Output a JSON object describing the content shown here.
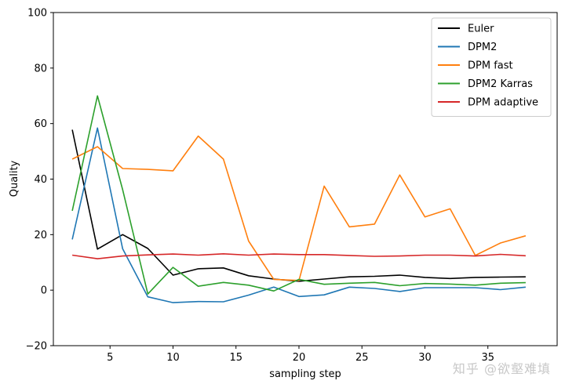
{
  "watermark": "知乎 @欲壑难填",
  "chart_data": {
    "type": "line",
    "title": "",
    "xlabel": "sampling step",
    "ylabel": "Quality",
    "xlim": [
      0.5,
      40.5
    ],
    "ylim": [
      -20,
      100
    ],
    "xticks": [
      5,
      10,
      15,
      20,
      25,
      30,
      35
    ],
    "yticks": [
      -20,
      0,
      20,
      40,
      60,
      80,
      100
    ],
    "grid": false,
    "legend_position": "top-right",
    "x": [
      2,
      4,
      6,
      8,
      10,
      12,
      14,
      16,
      18,
      20,
      22,
      24,
      26,
      28,
      30,
      32,
      34,
      36,
      38
    ],
    "series": [
      {
        "name": "Euler",
        "color": "#000000",
        "values": [
          57.8,
          14.8,
          20.0,
          15.0,
          5.4,
          7.7,
          8.0,
          5.2,
          4.0,
          3.2,
          4.0,
          4.8,
          5.0,
          5.4,
          4.6,
          4.2,
          4.6,
          4.7,
          4.8
        ]
      },
      {
        "name": "DPM2",
        "color": "#1f77b4",
        "values": [
          18.3,
          58.4,
          14.9,
          -2.4,
          -4.5,
          -4.1,
          -4.2,
          -1.8,
          1.1,
          -2.3,
          -1.7,
          1.1,
          0.6,
          -0.5,
          0.9,
          0.9,
          0.9,
          0.2,
          1.1
        ]
      },
      {
        "name": "DPM fast",
        "color": "#ff7f0e",
        "values": [
          47.2,
          51.7,
          43.8,
          43.5,
          43.0,
          55.5,
          47.2,
          17.7,
          3.9,
          3.5,
          37.5,
          22.8,
          23.8,
          41.5,
          26.4,
          29.3,
          12.5,
          17.0,
          19.6
        ]
      },
      {
        "name": "DPM2 Karras",
        "color": "#2ca02c",
        "values": [
          28.6,
          70.0,
          36.2,
          -1.4,
          8.2,
          1.4,
          2.8,
          1.8,
          -0.3,
          3.9,
          2.1,
          2.5,
          2.8,
          1.6,
          2.4,
          2.2,
          1.8,
          2.5,
          2.7
        ]
      },
      {
        "name": "DPM adaptive",
        "color": "#d62728",
        "values": [
          12.6,
          11.3,
          12.3,
          12.7,
          13.0,
          12.6,
          13.1,
          12.6,
          13.0,
          12.8,
          12.8,
          12.5,
          12.2,
          12.3,
          12.6,
          12.6,
          12.3,
          12.9,
          12.4
        ]
      }
    ]
  }
}
